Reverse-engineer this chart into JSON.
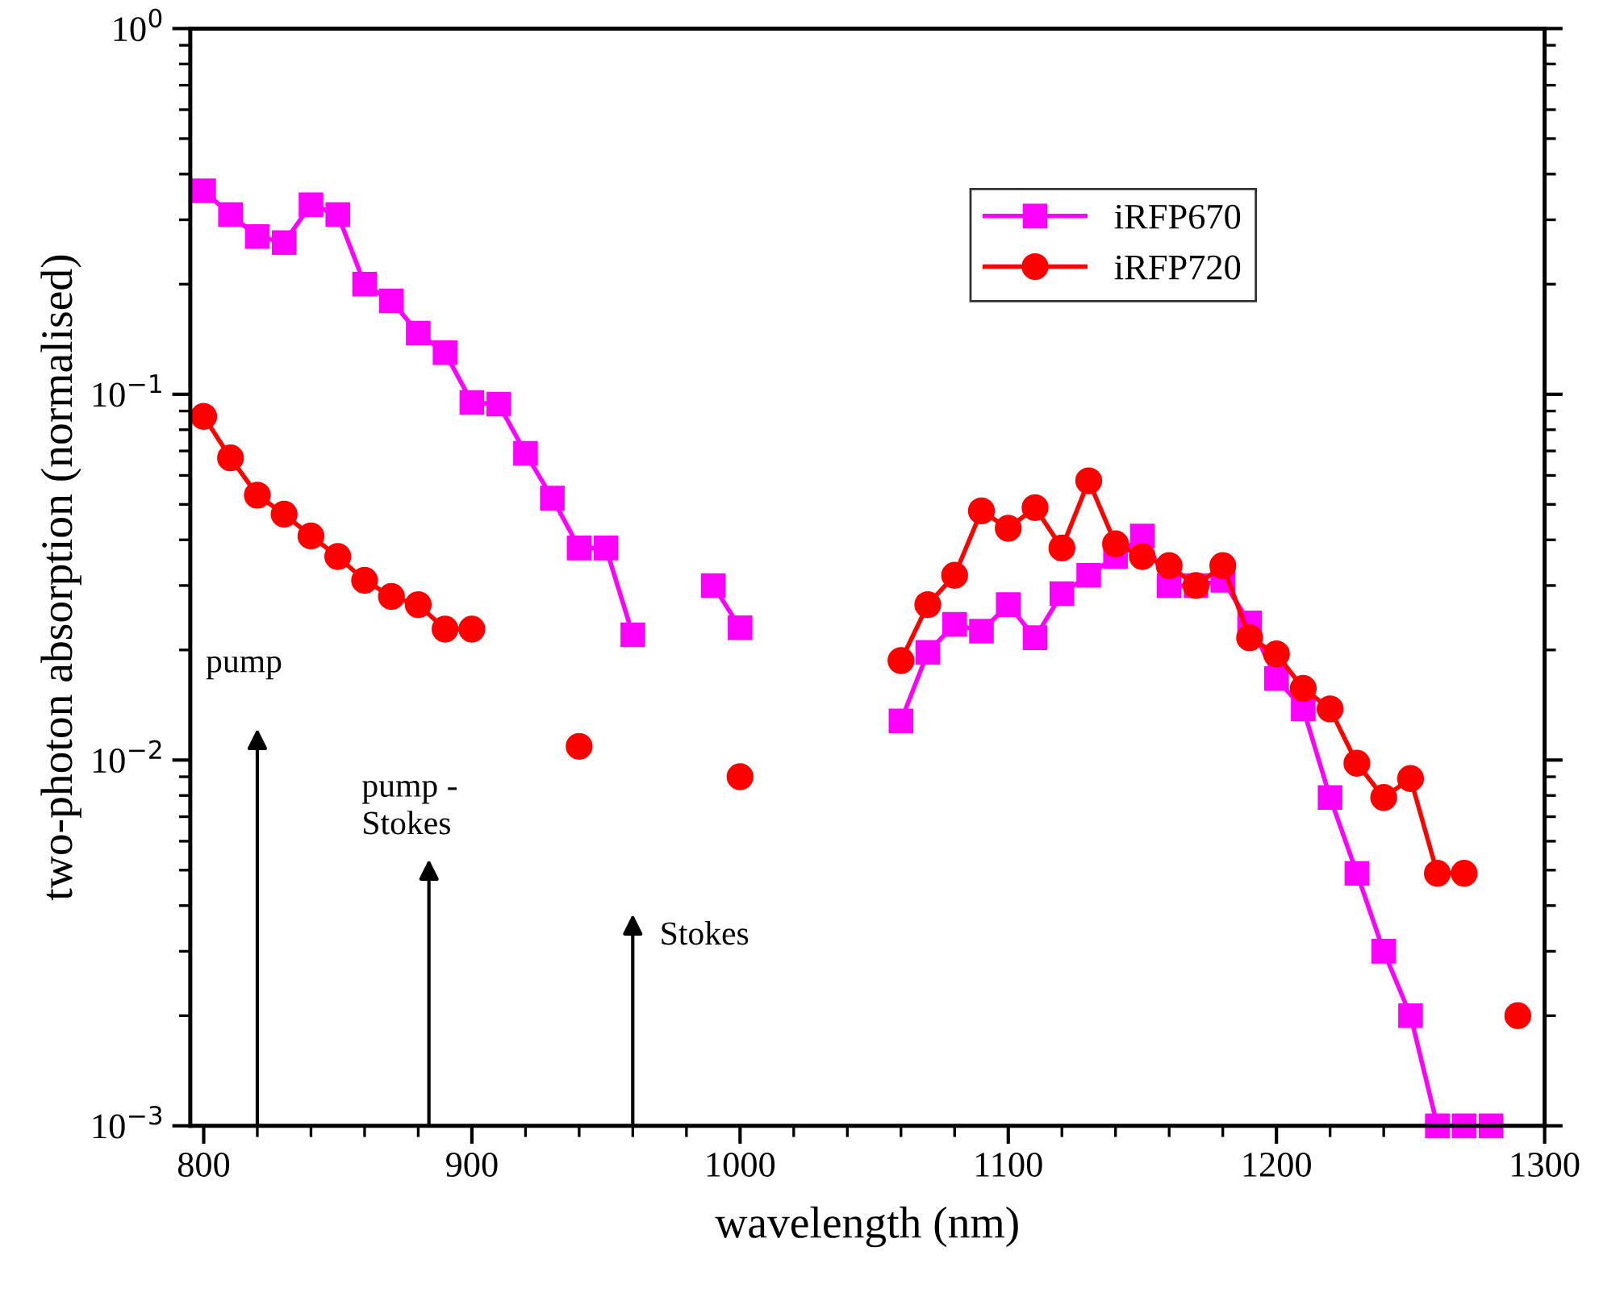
{
  "chart_data": {
    "type": "line",
    "xlabel": "wavelength (nm)",
    "ylabel": "two-photon absorption (normalised)",
    "log": "y",
    "xlim": [
      795,
      1300
    ],
    "xticks": [
      800,
      {
        "value": 820,
        "label": null
      },
      {
        "value": 840,
        "label": null
      },
      {
        "value": 860,
        "label": null
      },
      {
        "value": 880,
        "label": null
      },
      900,
      {
        "value": 920,
        "label": null
      },
      {
        "value": 940,
        "label": null
      },
      {
        "value": 960,
        "label": null
      },
      {
        "value": 980,
        "label": null
      },
      1000,
      {
        "value": 1020,
        "label": null
      },
      {
        "value": 1040,
        "label": null
      },
      {
        "value": 1060,
        "label": null
      },
      {
        "value": 1080,
        "label": null
      },
      1100,
      {
        "value": 1120,
        "label": null
      },
      {
        "value": 1140,
        "label": null
      },
      {
        "value": 1160,
        "label": null
      },
      {
        "value": 1180,
        "label": null
      },
      1200,
      {
        "value": 1220,
        "label": null
      },
      {
        "value": 1240,
        "label": null
      },
      {
        "value": 1260,
        "label": null
      },
      {
        "value": 1280,
        "label": null
      },
      1300
    ],
    "ylim": [
      0.001,
      1
    ],
    "yticks": [
      {
        "value": 0.001,
        "label": "10$^{−3}$"
      },
      {
        "value": 0.01,
        "label": "10$^{−2}$"
      },
      {
        "value": 0.1,
        "label": "10$^{−1}$"
      },
      {
        "value": 1,
        "label": "10$^{0}$"
      }
    ],
    "grid": false,
    "legend": "top right",
    "line_style": "solid",
    "series": [
      {
        "name": "iRFP670",
        "color": "#ff00ff",
        "marker": "square",
        "x": [
          800,
          810,
          820,
          830,
          840,
          850,
          860,
          870,
          880,
          890,
          900,
          910,
          920,
          930,
          940,
          950,
          960,
          970,
          990,
          1000,
          1010,
          1060,
          1070,
          1080,
          1090,
          1100,
          1110,
          1120,
          1130,
          1140,
          1150,
          1160,
          1170,
          1180,
          1190,
          1200,
          1210,
          1220,
          1230,
          1240,
          1250,
          1260,
          1270,
          1280
        ],
        "values": [
          0.36,
          0.31,
          0.27,
          0.26,
          0.33,
          0.31,
          0.2,
          0.18,
          0.147,
          0.13,
          0.095,
          0.094,
          0.069,
          0.052,
          0.038,
          0.038,
          0.022,
          null,
          0.03,
          0.023,
          null,
          0.0128,
          0.0197,
          0.0235,
          0.0225,
          0.0266,
          0.0216,
          0.0285,
          0.032,
          0.036,
          0.041,
          0.03,
          0.03,
          0.031,
          0.0237,
          0.0167,
          0.0138,
          0.0079,
          0.0049,
          0.003,
          0.002,
          0.001,
          0.001,
          0.001
        ]
      },
      {
        "name": "iRFP720",
        "color": "#ff0000",
        "marker": "circle",
        "x": [
          800,
          810,
          820,
          830,
          840,
          850,
          860,
          870,
          880,
          890,
          900,
          910,
          940,
          950,
          1000,
          1010,
          1060,
          1070,
          1080,
          1090,
          1100,
          1110,
          1120,
          1130,
          1140,
          1150,
          1160,
          1170,
          1180,
          1190,
          1200,
          1210,
          1220,
          1230,
          1240,
          1250,
          1260,
          1270,
          1280,
          1290
        ],
        "values": [
          0.087,
          0.067,
          0.053,
          0.047,
          0.041,
          0.036,
          0.031,
          0.028,
          0.0266,
          0.0228,
          0.0228,
          null,
          0.0109,
          null,
          0.009,
          null,
          0.0187,
          0.0266,
          0.032,
          0.048,
          0.043,
          0.049,
          0.038,
          0.058,
          0.039,
          0.036,
          0.034,
          0.03,
          0.034,
          0.0216,
          0.0195,
          0.0157,
          0.0138,
          0.0098,
          0.0079,
          0.0089,
          0.0049,
          0.0049,
          null,
          0.002
        ]
      }
    ],
    "annotations": [
      "pump",
      "pump -\nStokes",
      "Stokes"
    ]
  }
}
